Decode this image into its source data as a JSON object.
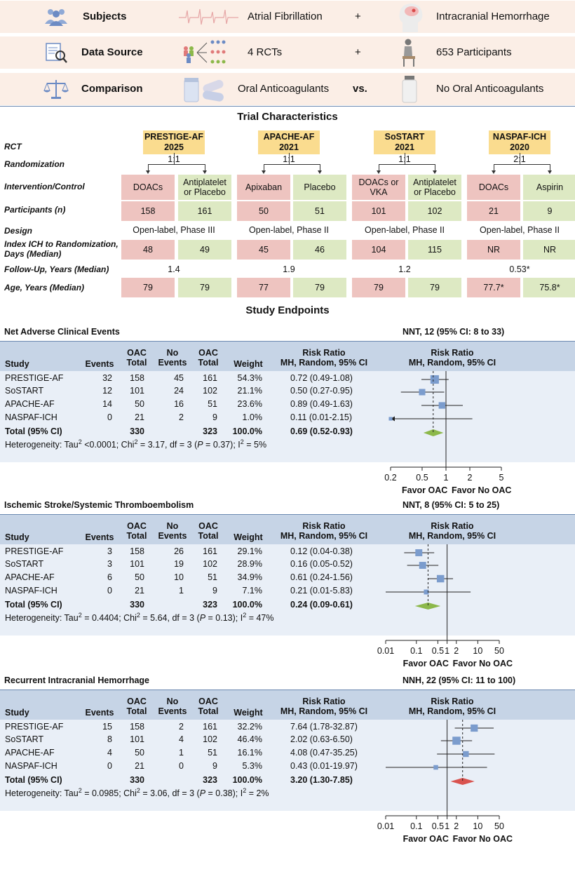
{
  "pico": {
    "subjects": {
      "label": "Subjects",
      "left": "Atrial Fibrillation",
      "op": "+",
      "right": "Intracranial Hemorrhage"
    },
    "source": {
      "label": "Data Source",
      "left": "4 RCTs",
      "op": "+",
      "right": "653 Participants"
    },
    "comparison": {
      "label": "Comparison",
      "left": "Oral Anticoagulants",
      "op": "vs.",
      "right": "No Oral Anticoagulants"
    }
  },
  "characteristics": {
    "title": "Trial Characteristics",
    "row_labels": {
      "rct": "RCT",
      "randomization": "Randomization",
      "intervention": "Intervention/Control",
      "participants": "Participants (n)",
      "design": "Design",
      "index_ich_1": "Index ICH to Randomization,",
      "index_ich_2": "Days (Median)",
      "followup": "Follow-Up, Years (Median)",
      "age": "Age, Years (Median)"
    },
    "trials": [
      {
        "name": "PRESTIGE-AF",
        "year": "2025",
        "ratio": "1:1",
        "int": "DOACs",
        "ctl1": "Antiplatelet",
        "ctl2": "or Placebo",
        "n_int": "158",
        "n_ctl": "161",
        "design": "Open-label, Phase III",
        "ich_int": "48",
        "ich_ctl": "49",
        "followup": "1.4",
        "age_int": "79",
        "age_ctl": "79"
      },
      {
        "name": "APACHE-AF",
        "year": "2021",
        "ratio": "1:1",
        "int": "Apixaban",
        "ctl1": "Placebo",
        "ctl2": "",
        "n_int": "50",
        "n_ctl": "51",
        "design": "Open-label, Phase II",
        "ich_int": "45",
        "ich_ctl": "46",
        "followup": "1.9",
        "age_int": "77",
        "age_ctl": "79"
      },
      {
        "name": "SoSTART",
        "year": "2021",
        "ratio": "1:1",
        "int": "DOACs or VKA",
        "ctl1": "Antiplatelet",
        "ctl2": "or Placebo",
        "n_int": "101",
        "n_ctl": "102",
        "design": "Open-label, Phase II",
        "ich_int": "104",
        "ich_ctl": "115",
        "followup": "1.2",
        "age_int": "79",
        "age_ctl": "79"
      },
      {
        "name": "NASPAF-ICH",
        "year": "2020",
        "ratio": "2:1",
        "int": "DOACs",
        "ctl1": "Aspirin",
        "ctl2": "",
        "n_int": "21",
        "n_ctl": "9",
        "design": "Open-label, Phase II",
        "ich_int": "NR",
        "ich_ctl": "NR",
        "followup": "0.53*",
        "age_int": "77.7*",
        "age_ctl": "75.8*"
      }
    ]
  },
  "endpoints_title": "Study Endpoints",
  "headers": {
    "study": "Study",
    "events": "Events",
    "oac1": "OAC",
    "total": "Total",
    "no1": "No",
    "ev2": "Events",
    "weight": "Weight",
    "rr1": "Risk Ratio",
    "rr2": "MH, Random, 95% CI"
  },
  "fav_left": "Favor OAC",
  "fav_right": "Favor No OAC",
  "chart_data": [
    {
      "type": "forest",
      "title": "Net Adverse Clinical Events",
      "nnt": "NNT, 12 (95% CI: 8 to 33)",
      "axis_ticks": [
        "0.2",
        "0.5",
        "1",
        "2",
        "5"
      ],
      "xlim": [
        0.2,
        5
      ],
      "scale": "log",
      "rows": [
        {
          "study": "PRESTIGE-AF",
          "e1": "32",
          "t1": "158",
          "e2": "45",
          "t2": "161",
          "w": "54.3%",
          "rrtxt": "0.72 (0.49-1.08)",
          "rr": 0.72,
          "lo": 0.49,
          "hi": 1.08
        },
        {
          "study": "SoSTART",
          "e1": "12",
          "t1": "101",
          "e2": "24",
          "t2": "102",
          "w": "21.1%",
          "rrtxt": "0.50 (0.27-0.95)",
          "rr": 0.5,
          "lo": 0.27,
          "hi": 0.95
        },
        {
          "study": "APACHE-AF",
          "e1": "14",
          "t1": "50",
          "e2": "16",
          "t2": "51",
          "w": "23.6%",
          "rrtxt": "0.89 (0.49-1.63)",
          "rr": 0.89,
          "lo": 0.49,
          "hi": 1.63
        },
        {
          "study": "NASPAF-ICH",
          "e1": "0",
          "t1": "21",
          "e2": "2",
          "t2": "9",
          "w": "1.0%",
          "rrtxt": "0.11 (0.01-2.15)",
          "rr": 0.11,
          "lo": 0.01,
          "hi": 2.15
        }
      ],
      "total": {
        "study": "Total (95% CI)",
        "t1": "330",
        "t2": "323",
        "w": "100.0%",
        "rrtxt": "0.69 (0.52-0.93)",
        "rr": 0.69,
        "lo": 0.52,
        "hi": 0.93
      },
      "het": {
        "a": "Heterogeneity: Tau",
        "b": " <0.0001; Chi",
        "c": " = 3.17, df = 3 (",
        "p": "P",
        "d": " = 0.37); I",
        "e": " = 5%"
      },
      "diamond_color": "#8cb84a"
    },
    {
      "type": "forest",
      "title": "Ischemic Stroke/Systemic Thromboembolism",
      "nnt": "NNT, 8 (95% CI: 5 to 25)",
      "axis_ticks": [
        "0.01",
        "0.1",
        "0.5",
        "1",
        "2",
        "10",
        "50"
      ],
      "xlim": [
        0.01,
        50
      ],
      "scale": "log",
      "rows": [
        {
          "study": "PRESTIGE-AF",
          "e1": "3",
          "t1": "158",
          "e2": "26",
          "t2": "161",
          "w": "29.1%",
          "rrtxt": "0.12 (0.04-0.38)",
          "rr": 0.12,
          "lo": 0.04,
          "hi": 0.38
        },
        {
          "study": "SoSTART",
          "e1": "3",
          "t1": "101",
          "e2": "19",
          "t2": "102",
          "w": "28.9%",
          "rrtxt": "0.16 (0.05-0.52)",
          "rr": 0.16,
          "lo": 0.05,
          "hi": 0.52
        },
        {
          "study": "APACHE-AF",
          "e1": "6",
          "t1": "50",
          "e2": "10",
          "t2": "51",
          "w": "34.9%",
          "rrtxt": "0.61 (0.24-1.56)",
          "rr": 0.61,
          "lo": 0.24,
          "hi": 1.56
        },
        {
          "study": "NASPAF-ICH",
          "e1": "0",
          "t1": "21",
          "e2": "1",
          "t2": "9",
          "w": "7.1%",
          "rrtxt": "0.21 (0.01-5.83)",
          "rr": 0.21,
          "lo": 0.01,
          "hi": 5.83
        }
      ],
      "total": {
        "study": "Total (95% CI)",
        "t1": "330",
        "t2": "323",
        "w": "100.0%",
        "rrtxt": "0.24 (0.09-0.61)",
        "rr": 0.24,
        "lo": 0.09,
        "hi": 0.61
      },
      "het": {
        "a": "Heterogeneity: Tau",
        "b": " = 0.4404; Chi",
        "c": " = 5.64, df = 3 (",
        "p": "P",
        "d": " = 0.13); I",
        "e": " = 47%"
      },
      "diamond_color": "#8cb84a"
    },
    {
      "type": "forest",
      "title": "Recurrent Intracranial Hemorrhage",
      "nnt": "NNH, 22 (95% CI: 11 to 100)",
      "axis_ticks": [
        "0.01",
        "0.1",
        "0.5",
        "1",
        "2",
        "10",
        "50"
      ],
      "xlim": [
        0.01,
        50
      ],
      "scale": "log",
      "rows": [
        {
          "study": "PRESTIGE-AF",
          "e1": "15",
          "t1": "158",
          "e2": "2",
          "t2": "161",
          "w": "32.2%",
          "rrtxt": "7.64 (1.78-32.87)",
          "rr": 7.64,
          "lo": 1.78,
          "hi": 32.87
        },
        {
          "study": "SoSTART",
          "e1": "8",
          "t1": "101",
          "e2": "4",
          "t2": "102",
          "w": "46.4%",
          "rrtxt": "2.02 (0.63-6.50)",
          "rr": 2.02,
          "lo": 0.63,
          "hi": 6.5
        },
        {
          "study": "APACHE-AF",
          "e1": "4",
          "t1": "50",
          "e2": "1",
          "t2": "51",
          "w": "16.1%",
          "rrtxt": "4.08 (0.47-35.25)",
          "rr": 4.08,
          "lo": 0.47,
          "hi": 35.25
        },
        {
          "study": "NASPAF-ICH",
          "e1": "0",
          "t1": "21",
          "e2": "0",
          "t2": "9",
          "w": "5.3%",
          "rrtxt": "0.43 (0.01-19.97)",
          "rr": 0.43,
          "lo": 0.01,
          "hi": 19.97
        }
      ],
      "total": {
        "study": "Total (95% CI)",
        "t1": "330",
        "t2": "323",
        "w": "100.0%",
        "rrtxt": "3.20 (1.30-7.85)",
        "rr": 3.2,
        "lo": 1.3,
        "hi": 7.85
      },
      "het": {
        "a": "Heterogeneity: Tau",
        "b": " = 0.0985; Chi",
        "c": " = 3.06, df = 3 (",
        "p": "P",
        "d": " = 0.38); I",
        "e": " = 2%"
      },
      "diamond_color": "#d9534f"
    }
  ]
}
